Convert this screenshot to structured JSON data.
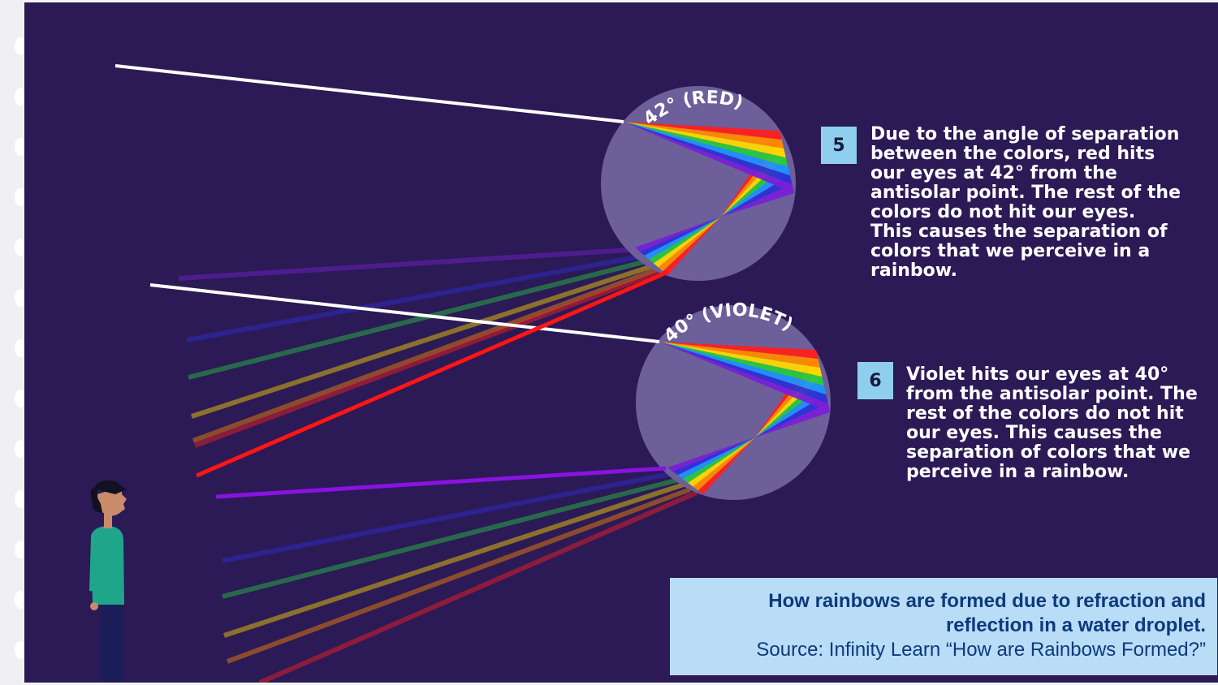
{
  "droplets": [
    {
      "angle_label": "42° (RED)"
    },
    {
      "angle_label": "40° (VIOLET)"
    }
  ],
  "steps": [
    {
      "number": "5",
      "text": "Due to the angle of separation\nbetween the colors, red hits\nour eyes at 42° from the\nantisolar point. The rest of the\ncolors do not hit our eyes.\nThis causes the separation of\ncolors that we perceive in a\nrainbow."
    },
    {
      "number": "6",
      "text": "Violet hits our eyes at 40°\nfrom the antisolar point. The\nrest of the colors do not hit\nour eyes. This causes the\nseparation of colors that we\nperceive in a rainbow."
    }
  ],
  "caption": {
    "title": "How rainbows are formed due to refraction and\nreflection in a water droplet.",
    "source": "Source: Infinity Learn “How are Rainbows Formed?”"
  },
  "colors": {
    "background": "#2b1a55",
    "droplet": "#6d5f9a",
    "badge": "#8ecff0",
    "caption_bg": "#b9dcf7",
    "caption_text": "#0d3a7a",
    "spectrum": [
      "#ff1f1f",
      "#ff8a00",
      "#ffd800",
      "#27c93f",
      "#1e90ff",
      "#2f2fd6",
      "#7b1fd6"
    ]
  }
}
